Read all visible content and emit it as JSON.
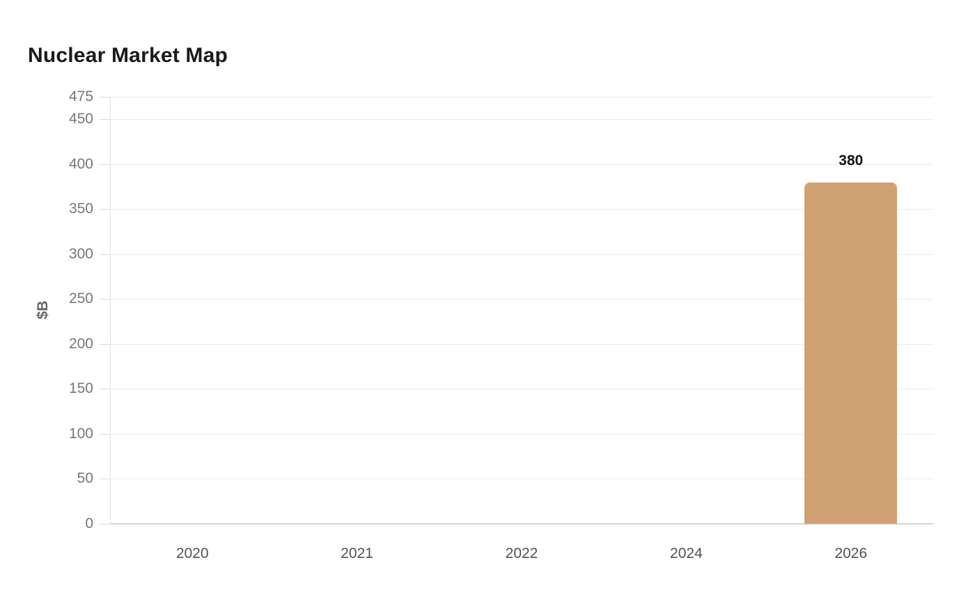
{
  "chart_data": {
    "type": "bar",
    "title": "Nuclear Market Map",
    "xlabel": "",
    "ylabel": "$B",
    "categories": [
      "2020",
      "2021",
      "2022",
      "2024",
      "2026"
    ],
    "values": [
      null,
      null,
      null,
      null,
      380
    ],
    "value_labels": [
      null,
      null,
      null,
      null,
      "380"
    ],
    "ylim": [
      0,
      475
    ],
    "yticks": [
      0,
      50,
      100,
      150,
      200,
      250,
      300,
      350,
      400,
      450,
      475
    ],
    "grid": "horizontal",
    "legend": false,
    "bar_color": "#d0a273",
    "background_color": "#ffffff"
  }
}
